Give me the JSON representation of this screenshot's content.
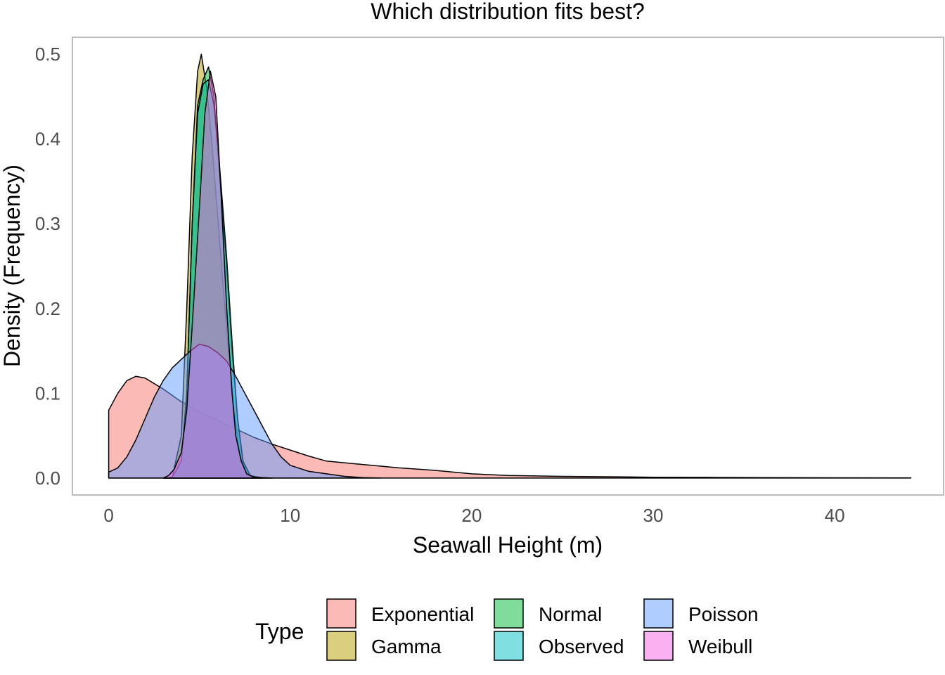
{
  "chart_data": {
    "type": "area",
    "title": "Which distribution fits best?",
    "xlabel": "Seawall Height (m)",
    "ylabel": "Density (Frequency)",
    "xlim": [
      -2,
      46
    ],
    "ylim": [
      -0.02,
      0.52
    ],
    "x_ticks": [
      0,
      10,
      20,
      30,
      40
    ],
    "x_tick_labels": [
      "0",
      "10",
      "20",
      "30",
      "40"
    ],
    "y_ticks": [
      0.0,
      0.1,
      0.2,
      0.3,
      0.4,
      0.5
    ],
    "y_tick_labels": [
      "0.0",
      "0.1",
      "0.2",
      "0.3",
      "0.4",
      "0.5"
    ],
    "grid": false,
    "legend": {
      "title": "Type",
      "position": "bottom"
    },
    "series": [
      {
        "name": "Exponential",
        "color": "#F8766D",
        "points": [
          [
            0,
            0.08
          ],
          [
            0.5,
            0.1
          ],
          [
            1,
            0.115
          ],
          [
            1.5,
            0.12
          ],
          [
            2,
            0.118
          ],
          [
            3,
            0.105
          ],
          [
            4,
            0.09
          ],
          [
            5,
            0.078
          ],
          [
            6,
            0.068
          ],
          [
            7,
            0.058
          ],
          [
            8,
            0.048
          ],
          [
            9,
            0.04
          ],
          [
            10,
            0.033
          ],
          [
            11,
            0.026
          ],
          [
            12,
            0.02
          ],
          [
            14,
            0.016
          ],
          [
            16,
            0.012
          ],
          [
            18,
            0.009
          ],
          [
            20,
            0.005
          ],
          [
            22,
            0.003
          ],
          [
            25,
            0.002
          ],
          [
            28,
            0.0015
          ],
          [
            30,
            0.001
          ],
          [
            33,
            0.0008
          ],
          [
            36,
            0.0005
          ],
          [
            40,
            0.0003
          ],
          [
            44.2,
            0.0002
          ]
        ]
      },
      {
        "name": "Gamma",
        "color": "#B79F00",
        "points": [
          [
            3,
            0
          ],
          [
            3.5,
            0.001
          ],
          [
            4,
            0.05
          ],
          [
            4.3,
            0.2
          ],
          [
            4.6,
            0.38
          ],
          [
            4.9,
            0.48
          ],
          [
            5.1,
            0.5
          ],
          [
            5.4,
            0.46
          ],
          [
            5.7,
            0.39
          ],
          [
            6,
            0.31
          ],
          [
            6.4,
            0.2
          ],
          [
            6.8,
            0.1
          ],
          [
            7.2,
            0.03
          ],
          [
            7.6,
            0.005
          ],
          [
            8,
            0.001
          ],
          [
            9,
            0
          ]
        ]
      },
      {
        "name": "Normal",
        "color": "#00BA38",
        "points": [
          [
            3,
            0
          ],
          [
            3.5,
            0.001
          ],
          [
            4,
            0.02
          ],
          [
            4.3,
            0.1
          ],
          [
            4.6,
            0.3
          ],
          [
            4.9,
            0.44
          ],
          [
            5.2,
            0.47
          ],
          [
            5.5,
            0.485
          ],
          [
            5.8,
            0.45
          ],
          [
            6.1,
            0.36
          ],
          [
            6.5,
            0.25
          ],
          [
            6.8,
            0.15
          ],
          [
            7.1,
            0.07
          ],
          [
            7.4,
            0.02
          ],
          [
            7.8,
            0.002
          ],
          [
            8.5,
            0
          ]
        ]
      },
      {
        "name": "Observed",
        "color": "#00BFC4",
        "points": [
          [
            3,
            0
          ],
          [
            3.5,
            0.001
          ],
          [
            4,
            0.02
          ],
          [
            4.3,
            0.1
          ],
          [
            4.6,
            0.3
          ],
          [
            4.9,
            0.43
          ],
          [
            5.2,
            0.465
          ],
          [
            5.5,
            0.47
          ],
          [
            5.8,
            0.44
          ],
          [
            6.1,
            0.37
          ],
          [
            6.5,
            0.26
          ],
          [
            6.8,
            0.16
          ],
          [
            7.1,
            0.07
          ],
          [
            7.4,
            0.02
          ],
          [
            7.8,
            0.003
          ],
          [
            8.5,
            0
          ]
        ]
      },
      {
        "name": "Poisson",
        "color": "#619CFF",
        "points": [
          [
            0,
            0.007
          ],
          [
            0.5,
            0.012
          ],
          [
            1,
            0.025
          ],
          [
            1.5,
            0.045
          ],
          [
            2,
            0.07
          ],
          [
            2.5,
            0.095
          ],
          [
            3,
            0.115
          ],
          [
            3.5,
            0.13
          ],
          [
            4,
            0.14
          ],
          [
            4.5,
            0.15
          ],
          [
            5,
            0.158
          ],
          [
            5.5,
            0.155
          ],
          [
            6,
            0.148
          ],
          [
            6.5,
            0.138
          ],
          [
            7,
            0.12
          ],
          [
            7.5,
            0.1
          ],
          [
            8,
            0.08
          ],
          [
            8.5,
            0.06
          ],
          [
            9,
            0.04
          ],
          [
            9.5,
            0.025
          ],
          [
            10,
            0.015
          ],
          [
            11,
            0.008
          ],
          [
            12,
            0.005
          ],
          [
            13,
            0.002
          ],
          [
            14,
            0.0005
          ],
          [
            15,
            0
          ]
        ]
      },
      {
        "name": "Weibull",
        "color": "#F564E3",
        "points": [
          [
            3,
            0
          ],
          [
            3.3,
            0.003
          ],
          [
            3.6,
            0.01
          ],
          [
            4,
            0.03
          ],
          [
            4.3,
            0.08
          ],
          [
            4.6,
            0.18
          ],
          [
            5,
            0.32
          ],
          [
            5.3,
            0.43
          ],
          [
            5.6,
            0.48
          ],
          [
            5.9,
            0.45
          ],
          [
            6.2,
            0.33
          ],
          [
            6.5,
            0.2
          ],
          [
            6.8,
            0.1
          ],
          [
            7,
            0.05
          ],
          [
            7.3,
            0.02
          ],
          [
            7.6,
            0.005
          ],
          [
            8,
            0.001
          ],
          [
            9,
            0
          ]
        ]
      }
    ]
  }
}
